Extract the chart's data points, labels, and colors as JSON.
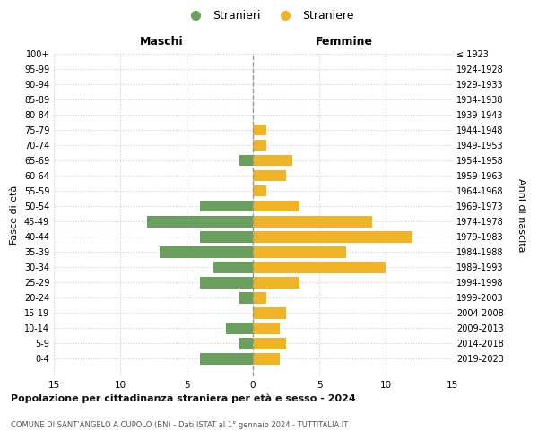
{
  "age_groups": [
    "100+",
    "95-99",
    "90-94",
    "85-89",
    "80-84",
    "75-79",
    "70-74",
    "65-69",
    "60-64",
    "55-59",
    "50-54",
    "45-49",
    "40-44",
    "35-39",
    "30-34",
    "25-29",
    "20-24",
    "15-19",
    "10-14",
    "5-9",
    "0-4"
  ],
  "birth_years": [
    "≤ 1923",
    "1924-1928",
    "1929-1933",
    "1934-1938",
    "1939-1943",
    "1944-1948",
    "1949-1953",
    "1954-1958",
    "1959-1963",
    "1964-1968",
    "1969-1973",
    "1974-1978",
    "1979-1983",
    "1984-1988",
    "1989-1993",
    "1994-1998",
    "1999-2003",
    "2004-2008",
    "2009-2013",
    "2014-2018",
    "2019-2023"
  ],
  "males": [
    0,
    0,
    0,
    0,
    0,
    0,
    0,
    1,
    0,
    0,
    4,
    8,
    4,
    7,
    3,
    4,
    1,
    0,
    2,
    1,
    4
  ],
  "females": [
    0,
    0,
    0,
    0,
    0,
    1,
    1,
    3,
    2.5,
    1,
    3.5,
    9,
    12,
    7,
    10,
    3.5,
    1,
    2.5,
    2,
    2.5,
    2
  ],
  "male_color": "#6a9f5e",
  "female_color": "#f0b429",
  "bar_height": 0.75,
  "xlim": 15,
  "title": "Popolazione per cittadinanza straniera per età e sesso - 2024",
  "subtitle": "COMUNE DI SANT’ANGELO A CUPOLO (BN) - Dati ISTAT al 1° gennaio 2024 - TUTTITALIA.IT",
  "ylabel_left": "Fasce di età",
  "ylabel_right": "Anni di nascita",
  "xlabel_left": "Maschi",
  "xlabel_right": "Femmine",
  "legend_male": "Stranieri",
  "legend_female": "Straniere",
  "background_color": "#ffffff",
  "grid_color": "#cccccc",
  "center_line_color": "#999999"
}
